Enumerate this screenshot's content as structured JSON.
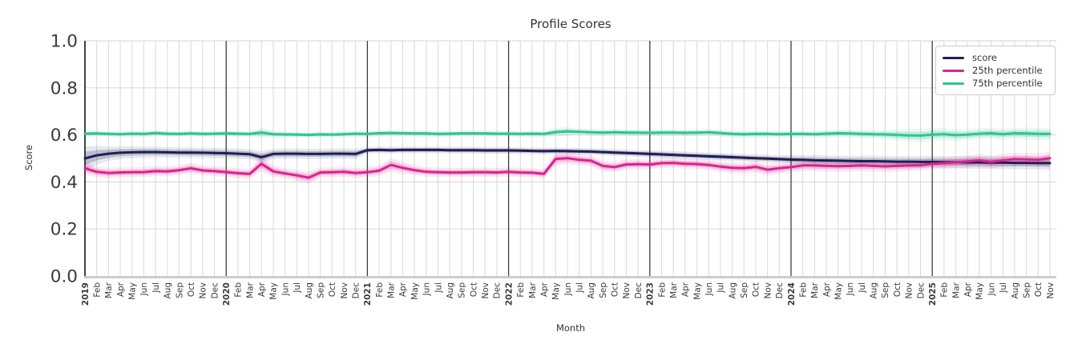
{
  "title": "Profile Scores",
  "axes": {
    "x_label": "Month",
    "y_label": "Score",
    "y_ticks": [
      "1.0",
      "0.8",
      "0.6",
      "0.4",
      "0.2",
      "0.0"
    ],
    "y_tick_values": [
      1.0,
      0.8,
      0.6,
      0.4,
      0.2,
      0.0
    ],
    "ylim": [
      0.0,
      1.0
    ]
  },
  "legend": {
    "position": "upper right",
    "entries": [
      {
        "label": "score",
        "color": "#1e1f55"
      },
      {
        "label": "25th percentile",
        "color": "#d9238f"
      },
      {
        "label": "75th percentile",
        "color": "#2ec592"
      }
    ]
  },
  "style": {
    "grid_color": "#dcdcdc",
    "year_line_color": "#3d3d3d",
    "bottom_axis_color": "#cccccc",
    "left_spine_color": "#2f2f2f",
    "tick_label_color": "#3a3a3a",
    "band_opacity_inner": 0.22,
    "band_opacity_outer": 0.1
  },
  "chart_data": {
    "type": "line",
    "title": "Profile Scores",
    "xlabel": "Month",
    "ylabel": "Score",
    "ylim": [
      0.0,
      1.0
    ],
    "x_range": [
      "2019-01",
      "2025-11"
    ],
    "grid": "monthly vertical, 0.2 horizontal major; dark vertical line at each January",
    "legend_position": "upper right",
    "x": [
      "2019",
      "Feb",
      "Mar",
      "Apr",
      "May",
      "Jun",
      "Jul",
      "Aug",
      "Sep",
      "Oct",
      "Nov",
      "Dec",
      "2020",
      "Feb",
      "Mar",
      "Apr",
      "May",
      "Jun",
      "Jul",
      "Aug",
      "Sep",
      "Oct",
      "Nov",
      "Dec",
      "2021",
      "Feb",
      "Mar",
      "Apr",
      "May",
      "Jun",
      "Jul",
      "Aug",
      "Sep",
      "Oct",
      "Nov",
      "Dec",
      "2022",
      "Feb",
      "Mar",
      "Apr",
      "May",
      "Jun",
      "Jul",
      "Aug",
      "Sep",
      "Oct",
      "Nov",
      "Dec",
      "2023",
      "Feb",
      "Mar",
      "Apr",
      "May",
      "Jun",
      "Jul",
      "Aug",
      "Sep",
      "Oct",
      "Nov",
      "Dec",
      "2024",
      "Feb",
      "Mar",
      "Apr",
      "May",
      "Jun",
      "Jul",
      "Aug",
      "Sep",
      "Oct",
      "Nov",
      "Dec",
      "2025",
      "Feb",
      "Mar",
      "Apr",
      "May",
      "Jun",
      "Jul",
      "Aug",
      "Sep",
      "Oct",
      "Nov"
    ],
    "series": [
      {
        "name": "score",
        "color": "#1e1f55",
        "values": [
          0.5,
          0.513,
          0.52,
          0.524,
          0.526,
          0.527,
          0.527,
          0.526,
          0.525,
          0.525,
          0.524,
          0.523,
          0.522,
          0.52,
          0.518,
          0.505,
          0.519,
          0.52,
          0.52,
          0.519,
          0.519,
          0.52,
          0.52,
          0.519,
          0.535,
          0.536,
          0.535,
          0.536,
          0.536,
          0.536,
          0.536,
          0.535,
          0.535,
          0.535,
          0.534,
          0.534,
          0.534,
          0.533,
          0.532,
          0.531,
          0.532,
          0.531,
          0.53,
          0.529,
          0.527,
          0.525,
          0.523,
          0.521,
          0.519,
          0.517,
          0.515,
          0.513,
          0.511,
          0.509,
          0.507,
          0.505,
          0.503,
          0.501,
          0.499,
          0.497,
          0.495,
          0.494,
          0.492,
          0.491,
          0.49,
          0.489,
          0.488,
          0.488,
          0.487,
          0.486,
          0.486,
          0.485,
          0.485,
          0.484,
          0.484,
          0.483,
          0.483,
          0.482,
          0.482,
          0.481,
          0.481,
          0.48,
          0.48
        ],
        "ci": [
          0.028,
          0.022,
          0.017,
          0.015,
          0.014,
          0.013,
          0.013,
          0.012,
          0.012,
          0.012,
          0.012,
          0.012,
          0.012,
          0.012,
          0.012,
          0.014,
          0.012,
          0.012,
          0.012,
          0.012,
          0.012,
          0.012,
          0.012,
          0.012,
          0.008,
          0.008,
          0.008,
          0.008,
          0.008,
          0.008,
          0.008,
          0.008,
          0.008,
          0.008,
          0.008,
          0.008,
          0.008,
          0.008,
          0.008,
          0.008,
          0.008,
          0.008,
          0.008,
          0.008,
          0.008,
          0.008,
          0.008,
          0.008,
          0.009,
          0.009,
          0.009,
          0.009,
          0.009,
          0.009,
          0.009,
          0.009,
          0.009,
          0.009,
          0.009,
          0.009,
          0.011,
          0.011,
          0.012,
          0.012,
          0.012,
          0.012,
          0.013,
          0.013,
          0.013,
          0.013,
          0.014,
          0.014,
          0.014,
          0.014,
          0.014,
          0.015,
          0.015,
          0.015,
          0.015,
          0.015,
          0.015,
          0.015,
          0.016
        ]
      },
      {
        "name": "25th percentile",
        "color": "#d9238f",
        "values": [
          0.458,
          0.443,
          0.438,
          0.44,
          0.441,
          0.442,
          0.446,
          0.445,
          0.45,
          0.458,
          0.449,
          0.446,
          0.442,
          0.437,
          0.434,
          0.477,
          0.445,
          0.436,
          0.428,
          0.418,
          0.44,
          0.441,
          0.443,
          0.438,
          0.441,
          0.448,
          0.472,
          0.46,
          0.45,
          0.443,
          0.441,
          0.44,
          0.44,
          0.441,
          0.441,
          0.44,
          0.443,
          0.44,
          0.439,
          0.434,
          0.498,
          0.501,
          0.494,
          0.49,
          0.468,
          0.463,
          0.474,
          0.475,
          0.474,
          0.48,
          0.481,
          0.477,
          0.476,
          0.472,
          0.465,
          0.46,
          0.459,
          0.464,
          0.452,
          0.458,
          0.463,
          0.47,
          0.47,
          0.468,
          0.467,
          0.468,
          0.47,
          0.468,
          0.466,
          0.468,
          0.47,
          0.471,
          0.477,
          0.48,
          0.483,
          0.487,
          0.492,
          0.485,
          0.492,
          0.497,
          0.496,
          0.494,
          0.501
        ],
        "ci": [
          0.015,
          0.013,
          0.012,
          0.012,
          0.012,
          0.012,
          0.012,
          0.012,
          0.012,
          0.013,
          0.012,
          0.012,
          0.012,
          0.012,
          0.012,
          0.018,
          0.014,
          0.012,
          0.013,
          0.015,
          0.012,
          0.012,
          0.012,
          0.012,
          0.012,
          0.013,
          0.016,
          0.014,
          0.012,
          0.011,
          0.011,
          0.011,
          0.011,
          0.011,
          0.011,
          0.011,
          0.011,
          0.011,
          0.011,
          0.012,
          0.016,
          0.014,
          0.013,
          0.013,
          0.013,
          0.012,
          0.012,
          0.012,
          0.012,
          0.012,
          0.012,
          0.012,
          0.012,
          0.012,
          0.012,
          0.013,
          0.013,
          0.013,
          0.014,
          0.013,
          0.013,
          0.013,
          0.013,
          0.013,
          0.013,
          0.013,
          0.013,
          0.013,
          0.013,
          0.013,
          0.013,
          0.013,
          0.014,
          0.014,
          0.014,
          0.015,
          0.015,
          0.015,
          0.015,
          0.015,
          0.015,
          0.015,
          0.016
        ]
      },
      {
        "name": "75th percentile",
        "color": "#2ec592",
        "values": [
          0.605,
          0.606,
          0.604,
          0.603,
          0.605,
          0.604,
          0.608,
          0.605,
          0.604,
          0.606,
          0.604,
          0.605,
          0.606,
          0.605,
          0.604,
          0.61,
          0.603,
          0.602,
          0.601,
          0.6,
          0.602,
          0.601,
          0.603,
          0.605,
          0.604,
          0.607,
          0.608,
          0.607,
          0.606,
          0.606,
          0.604,
          0.605,
          0.606,
          0.606,
          0.606,
          0.605,
          0.605,
          0.604,
          0.605,
          0.604,
          0.612,
          0.615,
          0.613,
          0.611,
          0.61,
          0.611,
          0.61,
          0.61,
          0.609,
          0.61,
          0.61,
          0.609,
          0.61,
          0.611,
          0.608,
          0.604,
          0.603,
          0.604,
          0.604,
          0.603,
          0.604,
          0.604,
          0.603,
          0.605,
          0.607,
          0.606,
          0.604,
          0.603,
          0.602,
          0.6,
          0.598,
          0.597,
          0.601,
          0.603,
          0.599,
          0.601,
          0.605,
          0.607,
          0.603,
          0.607,
          0.606,
          0.604,
          0.604
        ],
        "ci": [
          0.007,
          0.007,
          0.007,
          0.007,
          0.007,
          0.007,
          0.007,
          0.007,
          0.007,
          0.007,
          0.007,
          0.007,
          0.007,
          0.007,
          0.007,
          0.012,
          0.008,
          0.007,
          0.007,
          0.007,
          0.007,
          0.007,
          0.007,
          0.007,
          0.007,
          0.007,
          0.007,
          0.007,
          0.007,
          0.007,
          0.007,
          0.007,
          0.007,
          0.007,
          0.007,
          0.007,
          0.007,
          0.007,
          0.007,
          0.007,
          0.01,
          0.01,
          0.008,
          0.008,
          0.008,
          0.008,
          0.008,
          0.008,
          0.008,
          0.008,
          0.008,
          0.008,
          0.008,
          0.008,
          0.008,
          0.008,
          0.008,
          0.008,
          0.008,
          0.008,
          0.008,
          0.008,
          0.008,
          0.009,
          0.009,
          0.009,
          0.01,
          0.01,
          0.011,
          0.013,
          0.015,
          0.016,
          0.016,
          0.014,
          0.014,
          0.013,
          0.013,
          0.013,
          0.013,
          0.013,
          0.014,
          0.014,
          0.015
        ]
      }
    ]
  }
}
